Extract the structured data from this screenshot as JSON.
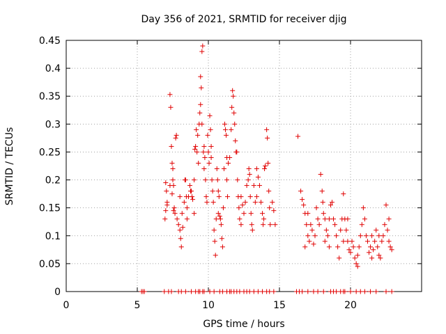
{
  "chart_data": {
    "type": "scatter",
    "title": "Day 356 of 2021, SRMTID for receiver djig",
    "xlabel": "GPS time / hours",
    "ylabel": "SRMTID / TECUs",
    "xlim": [
      0,
      25
    ],
    "ylim": [
      0,
      0.45
    ],
    "x_ticks": [
      0,
      5,
      10,
      15,
      20
    ],
    "x_tick_labels": [
      "0",
      "5",
      "10",
      "15",
      "20"
    ],
    "y_ticks": [
      0,
      0.05,
      0.1,
      0.15,
      0.2,
      0.25,
      0.3,
      0.35,
      0.4,
      0.45
    ],
    "y_tick_labels": [
      "0",
      "0.05",
      "0.1",
      "0.15",
      "0.2",
      "0.25",
      "0.3",
      "0.35",
      "0.4",
      "0.45"
    ],
    "grid": true,
    "marker": "plus",
    "color": "#e00000",
    "series": [
      {
        "name": "SRMTID",
        "points": [
          [
            5.3,
            0
          ],
          [
            5.4,
            0
          ],
          [
            5.5,
            0
          ],
          [
            6.9,
            0
          ],
          [
            7.2,
            0
          ],
          [
            7.4,
            0
          ],
          [
            7.9,
            0
          ],
          [
            8.1,
            0
          ],
          [
            8.4,
            0
          ],
          [
            8.8,
            0
          ],
          [
            9.1,
            0
          ],
          [
            9.3,
            0
          ],
          [
            9.4,
            0
          ],
          [
            9.6,
            0
          ],
          [
            9.7,
            0
          ],
          [
            10.1,
            0
          ],
          [
            10.4,
            0
          ],
          [
            10.8,
            0
          ],
          [
            11.0,
            0
          ],
          [
            11.3,
            0
          ],
          [
            11.5,
            0
          ],
          [
            11.6,
            0
          ],
          [
            11.8,
            0
          ],
          [
            12.0,
            0
          ],
          [
            12.2,
            0
          ],
          [
            12.5,
            0
          ],
          [
            12.7,
            0
          ],
          [
            12.9,
            0
          ],
          [
            13.2,
            0
          ],
          [
            13.5,
            0
          ],
          [
            13.8,
            0
          ],
          [
            14.1,
            0
          ],
          [
            14.3,
            0
          ],
          [
            14.6,
            0
          ],
          [
            16.2,
            0
          ],
          [
            16.4,
            0
          ],
          [
            16.6,
            0
          ],
          [
            17.0,
            0
          ],
          [
            17.4,
            0
          ],
          [
            17.7,
            0
          ],
          [
            18.1,
            0
          ],
          [
            18.6,
            0
          ],
          [
            18.8,
            0
          ],
          [
            19.0,
            0
          ],
          [
            19.3,
            0
          ],
          [
            19.5,
            0
          ],
          [
            19.6,
            0
          ],
          [
            20.0,
            0
          ],
          [
            20.4,
            0
          ],
          [
            20.7,
            0
          ],
          [
            21.0,
            0
          ],
          [
            21.4,
            0
          ],
          [
            21.8,
            0
          ],
          [
            22.5,
            0
          ],
          [
            22.9,
            0
          ],
          [
            7.0,
            0.195
          ],
          [
            7.05,
            0.18
          ],
          [
            7.1,
            0.16
          ],
          [
            7.0,
            0.145
          ],
          [
            6.95,
            0.13
          ],
          [
            7.1,
            0.155
          ],
          [
            7.3,
            0.353
          ],
          [
            7.35,
            0.33
          ],
          [
            7.4,
            0.26
          ],
          [
            7.45,
            0.23
          ],
          [
            7.5,
            0.2
          ],
          [
            7.55,
            0.19
          ],
          [
            7.6,
            0.15
          ],
          [
            7.65,
            0.14
          ],
          [
            7.7,
            0.275
          ],
          [
            7.75,
            0.28
          ],
          [
            7.5,
            0.22
          ],
          [
            7.45,
            0.175
          ],
          [
            7.55,
            0.145
          ],
          [
            7.8,
            0.13
          ],
          [
            7.9,
            0.12
          ],
          [
            8.0,
            0.11
          ],
          [
            8.05,
            0.095
          ],
          [
            8.1,
            0.08
          ],
          [
            8.15,
            0.14
          ],
          [
            8.2,
            0.115
          ],
          [
            8.3,
            0.16
          ],
          [
            8.35,
            0.2
          ],
          [
            8.4,
            0.2
          ],
          [
            8.45,
            0.17
          ],
          [
            8.5,
            0.15
          ],
          [
            8.6,
            0.17
          ],
          [
            8.7,
            0.19
          ],
          [
            8.75,
            0.18
          ],
          [
            8.8,
            0.18
          ],
          [
            8.85,
            0.17
          ],
          [
            8.9,
            0.165
          ],
          [
            9.0,
            0.2
          ],
          [
            9.05,
            0.255
          ],
          [
            9.1,
            0.26
          ],
          [
            9.15,
            0.29
          ],
          [
            9.2,
            0.25
          ],
          [
            9.25,
            0.28
          ],
          [
            9.3,
            0.23
          ],
          [
            9.35,
            0.3
          ],
          [
            9.4,
            0.32
          ],
          [
            9.45,
            0.385
          ],
          [
            9.5,
            0.365
          ],
          [
            9.55,
            0.43
          ],
          [
            9.6,
            0.44
          ],
          [
            9.45,
            0.335
          ],
          [
            9.55,
            0.3
          ],
          [
            9.65,
            0.25
          ],
          [
            9.7,
            0.22
          ],
          [
            9.75,
            0.24
          ],
          [
            9.8,
            0.2
          ],
          [
            9.85,
            0.17
          ],
          [
            9.9,
            0.16
          ],
          [
            9.95,
            0.28
          ],
          [
            10.0,
            0.25
          ],
          [
            10.05,
            0.23
          ],
          [
            10.1,
            0.315
          ],
          [
            10.15,
            0.29
          ],
          [
            10.2,
            0.24
          ],
          [
            10.25,
            0.2
          ],
          [
            10.3,
            0.18
          ],
          [
            10.35,
            0.16
          ],
          [
            10.4,
            0.11
          ],
          [
            10.45,
            0.09
          ],
          [
            10.5,
            0.065
          ],
          [
            10.55,
            0.13
          ],
          [
            10.6,
            0.22
          ],
          [
            10.65,
            0.2
          ],
          [
            10.7,
            0.18
          ],
          [
            10.75,
            0.17
          ],
          [
            10.8,
            0.135
          ],
          [
            10.85,
            0.13
          ],
          [
            10.9,
            0.12
          ],
          [
            10.95,
            0.095
          ],
          [
            11.0,
            0.08
          ],
          [
            11.05,
            0.15
          ],
          [
            11.1,
            0.22
          ],
          [
            11.15,
            0.3
          ],
          [
            11.2,
            0.29
          ],
          [
            11.25,
            0.28
          ],
          [
            11.3,
            0.2
          ],
          [
            11.35,
            0.17
          ],
          [
            11.4,
            0.23
          ],
          [
            11.5,
            0.24
          ],
          [
            11.6,
            0.29
          ],
          [
            11.65,
            0.33
          ],
          [
            11.7,
            0.36
          ],
          [
            11.75,
            0.35
          ],
          [
            11.8,
            0.32
          ],
          [
            11.85,
            0.3
          ],
          [
            11.9,
            0.27
          ],
          [
            11.95,
            0.25
          ],
          [
            12.0,
            0.25
          ],
          [
            12.05,
            0.2
          ],
          [
            12.1,
            0.17
          ],
          [
            12.15,
            0.15
          ],
          [
            12.2,
            0.13
          ],
          [
            12.3,
            0.17
          ],
          [
            12.4,
            0.155
          ],
          [
            12.5,
            0.14
          ],
          [
            12.6,
            0.16
          ],
          [
            12.7,
            0.19
          ],
          [
            12.8,
            0.2
          ],
          [
            12.85,
            0.22
          ],
          [
            12.9,
            0.21
          ],
          [
            12.95,
            0.17
          ],
          [
            13.0,
            0.14
          ],
          [
            13.05,
            0.12
          ],
          [
            13.1,
            0.11
          ],
          [
            13.2,
            0.19
          ],
          [
            13.3,
            0.16
          ],
          [
            13.4,
            0.22
          ],
          [
            13.5,
            0.205
          ],
          [
            13.6,
            0.19
          ],
          [
            13.7,
            0.16
          ],
          [
            13.8,
            0.14
          ],
          [
            13.85,
            0.12
          ],
          [
            13.9,
            0.13
          ],
          [
            13.95,
            0.22
          ],
          [
            14.0,
            0.225
          ],
          [
            14.1,
            0.29
          ],
          [
            14.15,
            0.275
          ],
          [
            14.2,
            0.23
          ],
          [
            14.25,
            0.18
          ],
          [
            14.3,
            0.15
          ],
          [
            14.35,
            0.12
          ],
          [
            14.5,
            0.16
          ],
          [
            14.6,
            0.145
          ],
          [
            14.7,
            0.12
          ],
          [
            7.3,
            0.19
          ],
          [
            8.5,
            0.13
          ],
          [
            9.0,
            0.14
          ],
          [
            9.7,
            0.26
          ],
          [
            10.2,
            0.26
          ],
          [
            10.7,
            0.14
          ],
          [
            11.3,
            0.24
          ],
          [
            12.3,
            0.12
          ],
          [
            13.4,
            0.17
          ],
          [
            8.0,
            0.17
          ],
          [
            16.3,
            0.278
          ],
          [
            16.5,
            0.18
          ],
          [
            16.6,
            0.165
          ],
          [
            16.7,
            0.155
          ],
          [
            16.8,
            0.14
          ],
          [
            16.9,
            0.12
          ],
          [
            17.0,
            0.1
          ],
          [
            17.1,
            0.09
          ],
          [
            17.2,
            0.12
          ],
          [
            17.3,
            0.11
          ],
          [
            17.4,
            0.085
          ],
          [
            17.5,
            0.1
          ],
          [
            17.6,
            0.15
          ],
          [
            17.7,
            0.13
          ],
          [
            17.8,
            0.12
          ],
          [
            17.9,
            0.21
          ],
          [
            18.0,
            0.18
          ],
          [
            18.05,
            0.16
          ],
          [
            18.1,
            0.14
          ],
          [
            18.2,
            0.13
          ],
          [
            18.3,
            0.11
          ],
          [
            18.4,
            0.1
          ],
          [
            18.5,
            0.13
          ],
          [
            18.6,
            0.155
          ],
          [
            18.7,
            0.16
          ],
          [
            18.8,
            0.13
          ],
          [
            18.9,
            0.12
          ],
          [
            19.0,
            0.1
          ],
          [
            19.1,
            0.08
          ],
          [
            19.2,
            0.06
          ],
          [
            19.3,
            0.11
          ],
          [
            19.4,
            0.13
          ],
          [
            19.5,
            0.175
          ],
          [
            19.6,
            0.13
          ],
          [
            19.7,
            0.11
          ],
          [
            19.8,
            0.09
          ],
          [
            19.9,
            0.075
          ],
          [
            20.0,
            0.07
          ],
          [
            20.1,
            0.09
          ],
          [
            20.2,
            0.08
          ],
          [
            20.3,
            0.06
          ],
          [
            20.4,
            0.05
          ],
          [
            20.5,
            0.065
          ],
          [
            20.6,
            0.08
          ],
          [
            20.7,
            0.1
          ],
          [
            20.8,
            0.12
          ],
          [
            20.9,
            0.15
          ],
          [
            21.0,
            0.13
          ],
          [
            21.1,
            0.1
          ],
          [
            21.2,
            0.09
          ],
          [
            21.3,
            0.07
          ],
          [
            21.4,
            0.08
          ],
          [
            21.5,
            0.06
          ],
          [
            21.6,
            0.075
          ],
          [
            21.7,
            0.09
          ],
          [
            21.8,
            0.11
          ],
          [
            21.9,
            0.08
          ],
          [
            22.0,
            0.065
          ],
          [
            22.1,
            0.06
          ],
          [
            22.2,
            0.09
          ],
          [
            22.3,
            0.1
          ],
          [
            22.4,
            0.12
          ],
          [
            22.5,
            0.155
          ],
          [
            22.6,
            0.11
          ],
          [
            22.7,
            0.09
          ],
          [
            22.8,
            0.08
          ],
          [
            22.9,
            0.075
          ],
          [
            17.0,
            0.14
          ],
          [
            18.2,
            0.09
          ],
          [
            19.5,
            0.09
          ],
          [
            20.5,
            0.045
          ],
          [
            21.5,
            0.1
          ],
          [
            22.0,
            0.1
          ],
          [
            22.7,
            0.13
          ],
          [
            16.8,
            0.08
          ],
          [
            18.5,
            0.08
          ],
          [
            19.8,
            0.13
          ]
        ]
      }
    ]
  }
}
